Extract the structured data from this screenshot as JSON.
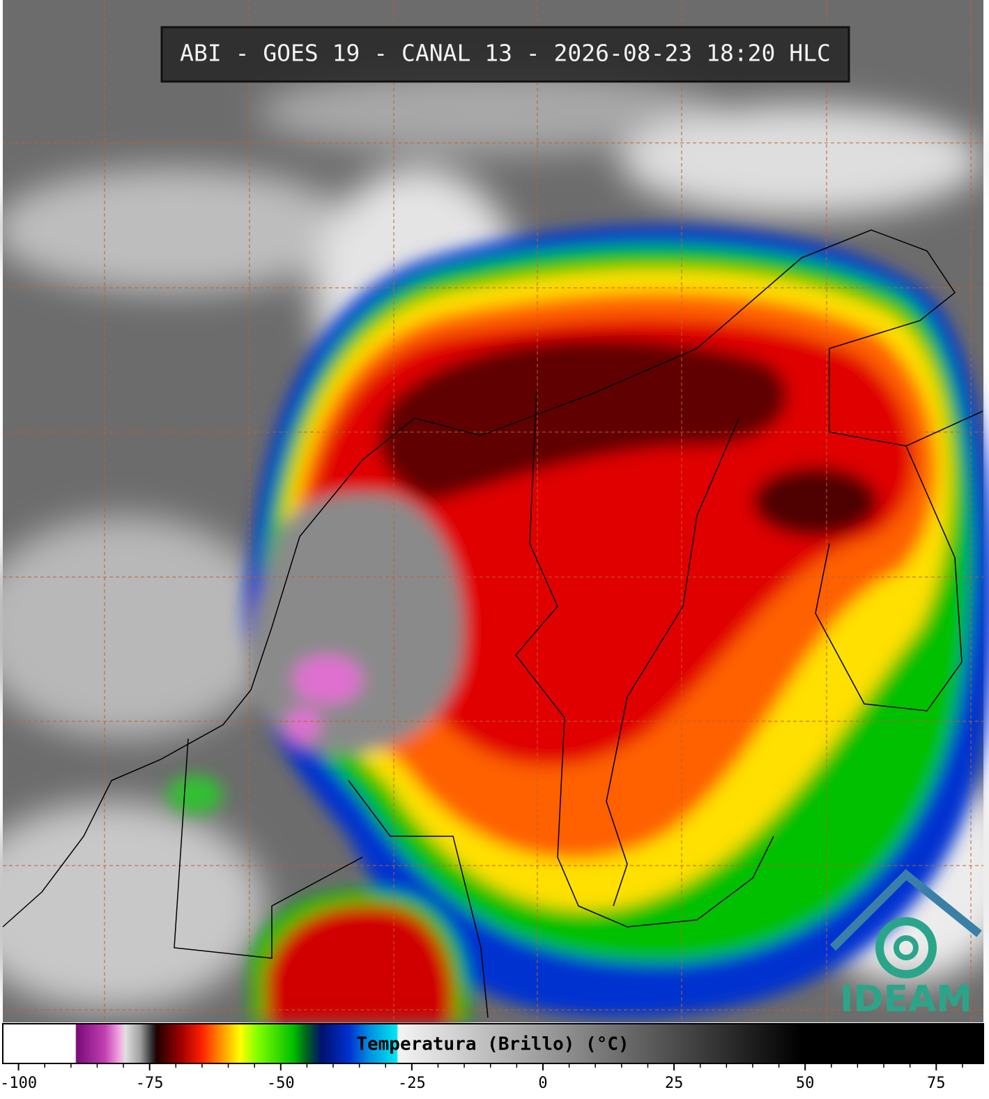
{
  "chart_data": {
    "type": "colorbar-map",
    "title": "ABI - GOES 19 - CANAL 13 - 2026-08-23 18:20 HLC",
    "colorbar_label": "Temperatura (Brillo) (°C)",
    "xlim": [
      -103,
      84
    ],
    "xticks": [
      -100,
      -75,
      -50,
      -25,
      0,
      25,
      50,
      75
    ],
    "xminorticks": [
      -95,
      -90,
      -85,
      -80,
      -70,
      -65,
      -60,
      -55,
      -45,
      -40,
      -35,
      -30,
      -20,
      -15,
      -10,
      -5,
      5,
      10,
      15,
      20,
      30,
      35,
      40,
      45,
      55,
      60,
      65,
      70,
      80
    ],
    "logo": "IDEAM"
  }
}
